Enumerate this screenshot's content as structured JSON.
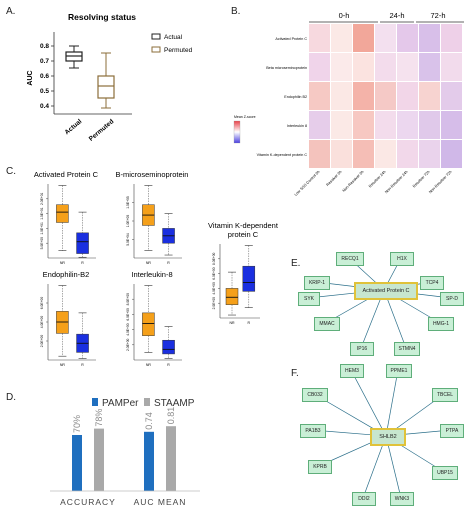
{
  "panels": {
    "A": "A.",
    "B": "B.",
    "C": "C.",
    "D": "D.",
    "E": "E.",
    "F": "F."
  },
  "panel_a": {
    "title": "Resolving status",
    "ylabel": "AUC",
    "yticks": [
      "0.4",
      "0.5",
      "0.6",
      "0.7",
      "0.8"
    ],
    "xticks": [
      "Actual",
      "Permuted"
    ],
    "legend": [
      "Actual",
      "Permuted"
    ],
    "colors": {
      "actual": "#222222",
      "permuted": "#8b6d3a"
    }
  },
  "panel_b": {
    "col_groups": [
      "0-h",
      "24-h",
      "72-h"
    ],
    "row_labels": [
      "Activated Protein C",
      "Beta microseminoprotein",
      "Endophilin B2",
      "Interleukin 8",
      "Vitamin K-dependent protein C"
    ],
    "col_labels": [
      "Low SSS Control 0h",
      "Resolver 0h",
      "Non-Resolver 0h",
      "Resolver 24h",
      "Non-Resolver 24h",
      "Resolver 72h",
      "Non-Resolver 72h"
    ],
    "legend_title": "Mean Z-score",
    "cells": [
      [
        "#f7d9df",
        "#fbe9e6",
        "#f2a79a",
        "#f3e0ef",
        "#e4c8ea",
        "#d8bfe9",
        "#eed0e8"
      ],
      [
        "#f0d4ea",
        "#fbeaea",
        "#fbe3e0",
        "#f3dcec",
        "#f5e2ee",
        "#d9c2ea",
        "#f2dbec"
      ],
      [
        "#f6c9c4",
        "#fbe8e5",
        "#f4b3a9",
        "#f5c9c6",
        "#f2d6e8",
        "#f7d3d0",
        "#e3cbea"
      ],
      [
        "#e6cdea",
        "#fbe9e6",
        "#f7c8c2",
        "#f3dcec",
        "#ecd7ef",
        "#e0c9ea",
        "#d6bde9"
      ],
      [
        "#f4c3bd",
        "#fae0dc",
        "#f5beb6",
        "#fbe8e5",
        "#f2d8ea",
        "#ead3ec",
        "#d0b8e8"
      ]
    ]
  },
  "panel_c": {
    "plots": [
      {
        "title": "Activated Protein C",
        "yticks": [
          "5.0E+00",
          "1.0E+01",
          "1.5E+01",
          "2.0E+01"
        ],
        "q1": 0.48,
        "med": 0.62,
        "q3": 0.72,
        "wlo": 0.1,
        "whi": 0.98,
        "b_q1": 0.06,
        "b_med": 0.22,
        "b_q3": 0.34,
        "b_wlo": 0.01,
        "b_whi": 0.62
      },
      {
        "title": "B-microseminoprotein",
        "yticks": [
          "5.0E+04",
          "1.0E+05",
          "1.5E+05"
        ],
        "q1": 0.44,
        "med": 0.58,
        "q3": 0.72,
        "wlo": 0.1,
        "whi": 0.98,
        "b_q1": 0.2,
        "b_med": 0.3,
        "b_q3": 0.4,
        "b_wlo": 0.04,
        "b_whi": 0.6
      },
      {
        "title": "Endophilin-B2",
        "yticks": [
          "2.0E+00",
          "4.0E+00",
          "6.0E+00"
        ],
        "q1": 0.35,
        "med": 0.5,
        "q3": 0.64,
        "wlo": 0.05,
        "whi": 0.98,
        "b_q1": 0.1,
        "b_med": 0.22,
        "b_q3": 0.34,
        "b_wlo": 0.02,
        "b_whi": 0.62
      },
      {
        "title": "Interleukin-8",
        "yticks": [
          "2.0E+00",
          "4.0E+00",
          "6.0E+00",
          "8.0E+00"
        ],
        "q1": 0.32,
        "med": 0.48,
        "q3": 0.62,
        "wlo": 0.1,
        "whi": 0.98,
        "b_q1": 0.08,
        "b_med": 0.14,
        "b_q3": 0.26,
        "b_wlo": 0.02,
        "b_whi": 0.44
      },
      {
        "title": "Vitamin K-dependent protein C",
        "yticks": [
          "2.0E+00",
          "4.0E+00",
          "6.0E+00",
          "8.0E+00"
        ],
        "q1": 0.18,
        "med": 0.28,
        "q3": 0.4,
        "wlo": 0.04,
        "whi": 0.62,
        "b_q1": 0.36,
        "b_med": 0.48,
        "b_q3": 0.7,
        "b_wlo": 0.14,
        "b_whi": 0.98
      }
    ],
    "xticks": [
      "NR",
      "R"
    ],
    "colors": {
      "nr": "#f5a01a",
      "r": "#1a2fe0"
    }
  },
  "panel_d": {
    "chart_data": {
      "type": "bar",
      "categories": [
        "ACCURACY",
        "AUC MEAN"
      ],
      "series": [
        {
          "name": "PAMPer",
          "values": [
            0.7,
            0.74
          ],
          "labels": [
            "70%",
            "0.74"
          ],
          "color": "#1f6fbf"
        },
        {
          "name": "STAAMP",
          "values": [
            0.78,
            0.81
          ],
          "labels": [
            "78%",
            "0.81"
          ],
          "color": "#a9a9a9"
        }
      ],
      "ylim": [
        0,
        1
      ]
    }
  },
  "panel_e": {
    "center": "Activated Protein C",
    "nodes": [
      "RECQ1",
      "H1X",
      "KRIP-1",
      "TCP4",
      "SYK",
      "SP-D",
      "MMAC",
      "HMG-1",
      "IP16",
      "STMN4"
    ]
  },
  "panel_f": {
    "center": "SHLB2",
    "nodes": [
      "HEM3",
      "PPME1",
      "CB032",
      "TBCEL",
      "PA1B3",
      "PTPA",
      "KPRB",
      "UBP15",
      "DDI2",
      "WNK3"
    ]
  }
}
